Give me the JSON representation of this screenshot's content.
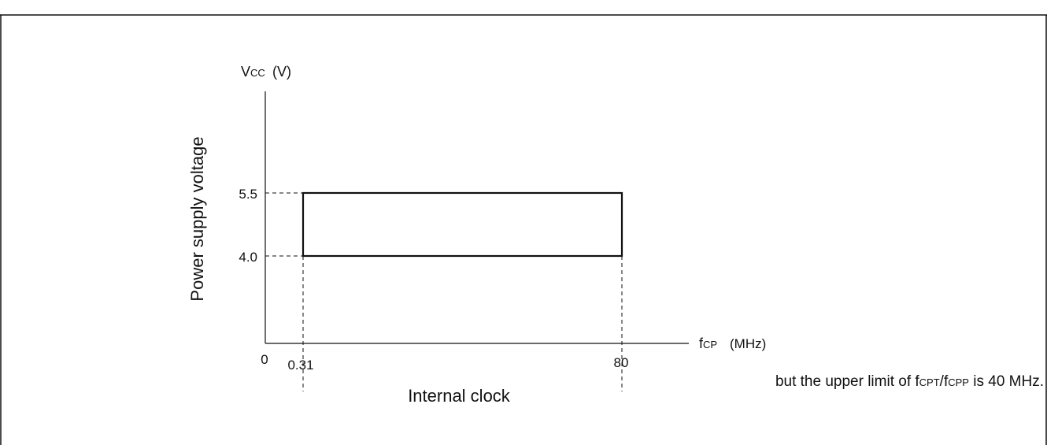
{
  "diagram": {
    "y_axis": {
      "symbol_main": "V",
      "symbol_sub": "CC",
      "unit": "(V)",
      "label": "Power supply voltage",
      "ticks": [
        "5.5",
        "4.0"
      ]
    },
    "x_axis": {
      "symbol_main": "f",
      "symbol_sub": "CP",
      "unit": "(MHz)",
      "label": "Internal clock",
      "origin_label": "0",
      "ticks": [
        "0.31",
        "80"
      ]
    },
    "operating_region": {
      "voltage_min": 4.0,
      "voltage_max": 5.5,
      "frequency_min": 0.31,
      "frequency_max": 80
    },
    "note": {
      "prefix": "but the upper limit of f",
      "sub1": "CPT",
      "slash": "/f",
      "sub2": "CPP",
      "suffix": " is 40 MHz."
    }
  }
}
